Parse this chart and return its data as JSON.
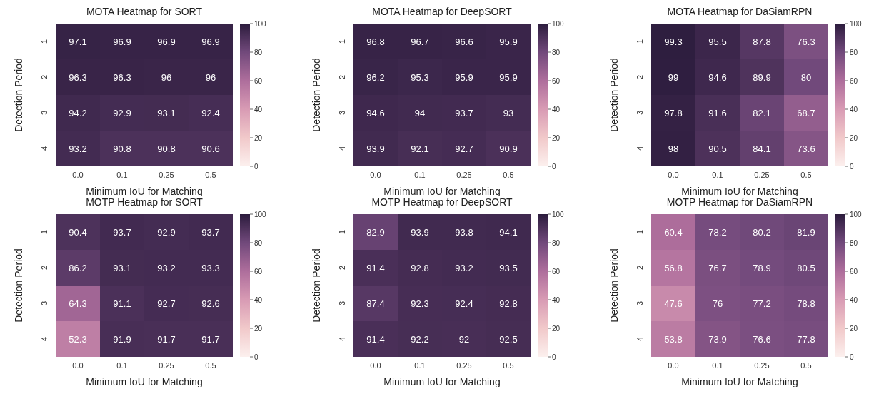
{
  "chart_data": [
    {
      "type": "heatmap",
      "title": "MOTA Heatmap for SORT",
      "xlabel": "Minimum IoU for Matching",
      "ylabel": "Detection Period",
      "categories": [
        "0.0",
        "0.1",
        "0.25",
        "0.5"
      ],
      "y_categories": [
        "1",
        "2",
        "3",
        "4"
      ],
      "cells": [
        [
          97.1,
          96.9,
          96.9,
          96.9
        ],
        [
          96.3,
          96.3,
          96,
          96
        ],
        [
          94.2,
          92.9,
          93.1,
          92.4
        ],
        [
          93.2,
          90.8,
          90.8,
          90.6
        ]
      ],
      "clim": [
        0,
        100
      ],
      "cticks": [
        0,
        20,
        40,
        60,
        80,
        100
      ],
      "data_labels": true
    },
    {
      "type": "heatmap",
      "title": "MOTA Heatmap for DeepSORT",
      "xlabel": "Minimum IoU for Matching",
      "ylabel": "Detection Period",
      "categories": [
        "0.0",
        "0.1",
        "0.25",
        "0.5"
      ],
      "y_categories": [
        "1",
        "2",
        "3",
        "4"
      ],
      "cells": [
        [
          96.8,
          96.7,
          96.6,
          95.9
        ],
        [
          96.2,
          95.3,
          95.9,
          95.9
        ],
        [
          94.6,
          94,
          93.7,
          93
        ],
        [
          93.9,
          92.1,
          92.7,
          90.9
        ]
      ],
      "clim": [
        0,
        100
      ],
      "cticks": [
        0,
        20,
        40,
        60,
        80,
        100
      ],
      "data_labels": true
    },
    {
      "type": "heatmap",
      "title": "MOTA Heatmap for DaSiamRPN",
      "xlabel": "Minimum IoU for Matching",
      "ylabel": "Detection Period",
      "categories": [
        "0.0",
        "0.1",
        "0.25",
        "0.5"
      ],
      "y_categories": [
        "1",
        "2",
        "3",
        "4"
      ],
      "cells": [
        [
          99.3,
          95.5,
          87.8,
          76.3
        ],
        [
          99,
          94.6,
          89.9,
          80
        ],
        [
          97.8,
          91.6,
          82.1,
          68.7
        ],
        [
          98,
          90.5,
          84.1,
          73.6
        ]
      ],
      "clim": [
        0,
        100
      ],
      "cticks": [
        0,
        20,
        40,
        60,
        80,
        100
      ],
      "data_labels": true
    },
    {
      "type": "heatmap",
      "title": "MOTP Heatmap for SORT",
      "xlabel": "Minimum IoU for Matching",
      "ylabel": "Detection Period",
      "categories": [
        "0.0",
        "0.1",
        "0.25",
        "0.5"
      ],
      "y_categories": [
        "1",
        "2",
        "3",
        "4"
      ],
      "cells": [
        [
          90.4,
          93.7,
          92.9,
          93.7
        ],
        [
          86.2,
          93.1,
          93.2,
          93.3
        ],
        [
          64.3,
          91.1,
          92.7,
          92.6
        ],
        [
          52.3,
          91.9,
          91.7,
          91.7
        ]
      ],
      "clim": [
        0,
        100
      ],
      "cticks": [
        0,
        20,
        40,
        60,
        80,
        100
      ],
      "data_labels": true
    },
    {
      "type": "heatmap",
      "title": "MOTP Heatmap for DeepSORT",
      "xlabel": "Minimum IoU for Matching",
      "ylabel": "Detection Period",
      "categories": [
        "0.0",
        "0.1",
        "0.25",
        "0.5"
      ],
      "y_categories": [
        "1",
        "2",
        "3",
        "4"
      ],
      "cells": [
        [
          82.9,
          93.9,
          93.8,
          94.1
        ],
        [
          91.4,
          92.8,
          93.2,
          93.5
        ],
        [
          87.4,
          92.3,
          92.4,
          92.8
        ],
        [
          91.4,
          92.2,
          92,
          92.5
        ]
      ],
      "clim": [
        0,
        100
      ],
      "cticks": [
        0,
        20,
        40,
        60,
        80,
        100
      ],
      "data_labels": true
    },
    {
      "type": "heatmap",
      "title": "MOTP Heatmap for DaSiamRPN",
      "xlabel": "Minimum IoU for Matching",
      "ylabel": "Detection Period",
      "categories": [
        "0.0",
        "0.1",
        "0.25",
        "0.5"
      ],
      "y_categories": [
        "1",
        "2",
        "3",
        "4"
      ],
      "cells": [
        [
          60.4,
          78.2,
          80.2,
          81.9
        ],
        [
          56.8,
          76.7,
          78.9,
          80.5
        ],
        [
          47.6,
          76,
          77.2,
          78.8
        ],
        [
          53.8,
          73.9,
          76.6,
          77.8
        ]
      ],
      "clim": [
        0,
        100
      ],
      "cticks": [
        0,
        20,
        40,
        60,
        80,
        100
      ],
      "data_labels": true
    }
  ]
}
